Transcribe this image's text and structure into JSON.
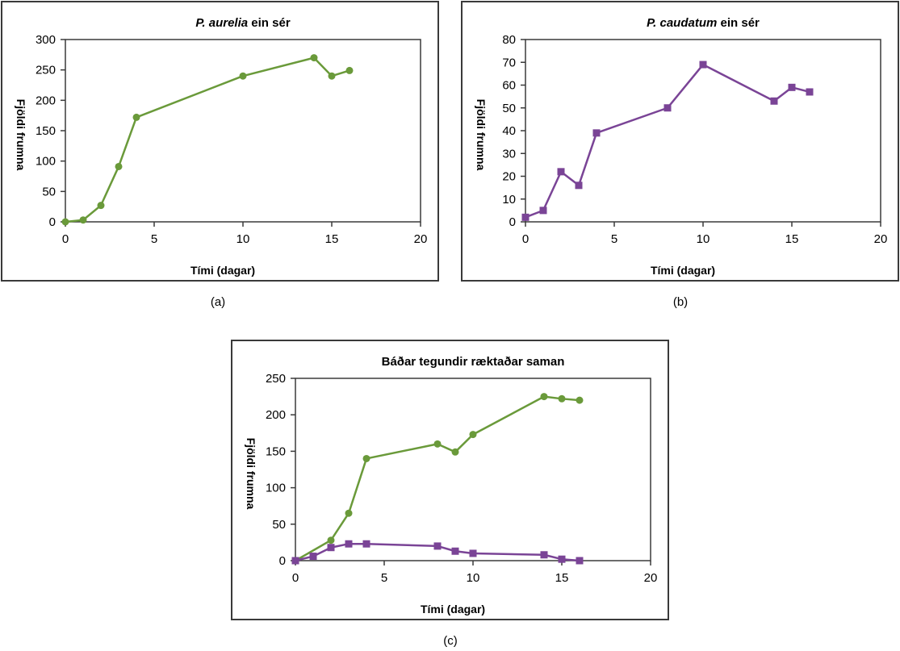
{
  "colors": {
    "aurelia": "#6a9a3a",
    "caudatum": "#7a4496",
    "axis": "#3a3a3a"
  },
  "captions": {
    "a": "(a)",
    "b": "(b)",
    "c": "(c)"
  },
  "chart_data": [
    {
      "type": "line",
      "title_parts": [
        "P. aurelia",
        " ein sér"
      ],
      "xlabel": "Tími (dagar)",
      "ylabel": "Fjöldi frumna",
      "xlim": [
        0,
        20
      ],
      "ylim": [
        0,
        300
      ],
      "xticks": [
        0,
        5,
        10,
        15,
        20
      ],
      "yticks": [
        0,
        50,
        100,
        150,
        200,
        250,
        300
      ],
      "series": [
        {
          "color_key": "aurelia",
          "marker": "circle",
          "x": [
            0,
            1,
            2,
            3,
            4,
            10,
            14,
            15,
            16
          ],
          "y": [
            0,
            3,
            27,
            91,
            172,
            240,
            270,
            240,
            249
          ]
        }
      ]
    },
    {
      "type": "line",
      "title_parts": [
        "P. caudatum",
        " ein sér"
      ],
      "xlabel": "Tími (dagar)",
      "ylabel": "Fjöldi frumna",
      "xlim": [
        0,
        20
      ],
      "ylim": [
        0,
        80
      ],
      "xticks": [
        0,
        5,
        10,
        15,
        20
      ],
      "yticks": [
        0,
        10,
        20,
        30,
        40,
        50,
        60,
        70,
        80
      ],
      "series": [
        {
          "color_key": "caudatum",
          "marker": "square",
          "x": [
            0,
            1,
            2,
            3,
            4,
            8,
            10,
            14,
            15,
            16
          ],
          "y": [
            2,
            5,
            22,
            16,
            39,
            50,
            69,
            53,
            59,
            57
          ]
        }
      ]
    },
    {
      "type": "line",
      "title_parts": [
        "Báðar tegundir ræktaðar saman"
      ],
      "xlabel": "Tími (dagar)",
      "ylabel": "Fjöldi frumna",
      "xlim": [
        0,
        20
      ],
      "ylim": [
        0,
        250
      ],
      "xticks": [
        0,
        5,
        10,
        15,
        20
      ],
      "yticks": [
        0,
        50,
        100,
        150,
        200,
        250
      ],
      "series": [
        {
          "color_key": "aurelia",
          "marker": "circle",
          "x": [
            0,
            2,
            3,
            4,
            8,
            9,
            10,
            14,
            15,
            16
          ],
          "y": [
            0,
            28,
            65,
            140,
            160,
            149,
            173,
            225,
            222,
            220
          ]
        },
        {
          "color_key": "caudatum",
          "marker": "square",
          "x": [
            0,
            1,
            2,
            3,
            4,
            8,
            9,
            10,
            14,
            15,
            16
          ],
          "y": [
            0,
            6,
            18,
            23,
            23,
            20,
            13,
            10,
            8,
            2,
            0
          ]
        }
      ]
    }
  ]
}
